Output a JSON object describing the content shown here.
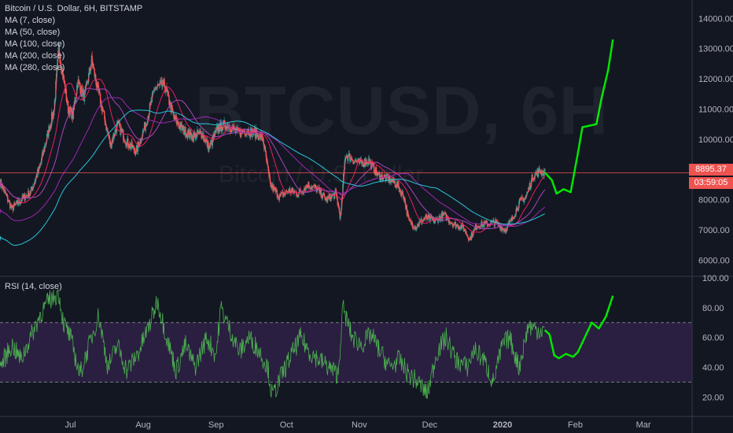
{
  "header": {
    "title": "Bitcoin / U.S. Dollar, 6H, BITSTAMP",
    "ma_labels": [
      "MA (7, close)",
      "MA (50, close)",
      "MA (100, close)",
      "MA (200, close)",
      "MA (280, close)"
    ]
  },
  "watermark": {
    "symbol": "BTCUSD, 6H",
    "name": "Bitcoin / U.S. Dollar"
  },
  "price_tag": {
    "price": "8895.37",
    "countdown": "03:59:05"
  },
  "colors": {
    "background": "#131722",
    "up": "#26a69a",
    "down": "#ef5350",
    "rsi_line": "#4caf50",
    "projection": "#00e600",
    "rsi_band": "#2a1f40"
  },
  "chart_data": [
    {
      "type": "line",
      "title": "Bitcoin / U.S. Dollar, 6H, BITSTAMP",
      "x_ticks": [
        "Jul",
        "Aug",
        "Sep",
        "Oct",
        "Nov",
        "Dec",
        "2020",
        "Feb",
        "Mar"
      ],
      "y_ticks": [
        "6000.00",
        "7000.00",
        "8000.00",
        "9000.00",
        "10000.00",
        "11000.00",
        "12000.00",
        "13000.00",
        "14000.00"
      ],
      "ylim": [
        5700,
        14400
      ],
      "grid": false,
      "legend": "top-left",
      "price": {
        "x": [
          "2019-06-01",
          "2019-06-06",
          "2019-06-10",
          "2019-06-14",
          "2019-06-18",
          "2019-06-22",
          "2019-06-24",
          "2019-06-26",
          "2019-06-28",
          "2019-06-30",
          "2019-07-02",
          "2019-07-04",
          "2019-07-07",
          "2019-07-10",
          "2019-07-13",
          "2019-07-16",
          "2019-07-18",
          "2019-07-21",
          "2019-07-25",
          "2019-07-29",
          "2019-08-02",
          "2019-08-06",
          "2019-08-10",
          "2019-08-14",
          "2019-08-18",
          "2019-08-22",
          "2019-08-26",
          "2019-08-29",
          "2019-09-02",
          "2019-09-06",
          "2019-09-10",
          "2019-09-14",
          "2019-09-18",
          "2019-09-21",
          "2019-09-24",
          "2019-09-28",
          "2019-10-02",
          "2019-10-06",
          "2019-10-10",
          "2019-10-14",
          "2019-10-18",
          "2019-10-22",
          "2019-10-24",
          "2019-10-26",
          "2019-10-28",
          "2019-11-01",
          "2019-11-05",
          "2019-11-09",
          "2019-11-13",
          "2019-11-17",
          "2019-11-20",
          "2019-11-22",
          "2019-11-25",
          "2019-11-29",
          "2019-12-03",
          "2019-12-07",
          "2019-12-11",
          "2019-12-15",
          "2019-12-18",
          "2019-12-21",
          "2019-12-25",
          "2019-12-29",
          "2020-01-02",
          "2020-01-05",
          "2020-01-08",
          "2020-01-11",
          "2020-01-14",
          "2020-01-17",
          "2020-01-19"
        ],
        "y": [
          8600,
          7700,
          8000,
          8250,
          9100,
          10400,
          11000,
          13000,
          12000,
          11000,
          10800,
          11900,
          11400,
          12600,
          11500,
          10500,
          9800,
          10500,
          9900,
          9600,
          10500,
          11700,
          11800,
          10700,
          10300,
          10100,
          10200,
          9700,
          10400,
          10500,
          10200,
          10300,
          10200,
          10000,
          8500,
          8100,
          8300,
          8200,
          8500,
          8350,
          8000,
          8200,
          7400,
          9500,
          9400,
          9200,
          9300,
          8800,
          8700,
          8500,
          8100,
          7300,
          7100,
          7400,
          7300,
          7500,
          7200,
          7100,
          6700,
          7150,
          7200,
          7250,
          7000,
          7350,
          7900,
          8100,
          8800,
          8950,
          8895
        ]
      },
      "moving_averages": [
        {
          "name": "MA (7, close)",
          "color": "#f7525f"
        },
        {
          "name": "MA (50, close)",
          "color": "#e91e63"
        },
        {
          "name": "MA (100, close)",
          "color": "#ab47bc"
        },
        {
          "name": "MA (200, close)",
          "color": "#9c27b0"
        },
        {
          "name": "MA (280, close)",
          "color": "#26c6da"
        }
      ],
      "projection": {
        "x": [
          "2020-01-19",
          "2020-01-22",
          "2020-01-24",
          "2020-01-27",
          "2020-01-30",
          "2020-02-02",
          "2020-02-04",
          "2020-02-07",
          "2020-02-10",
          "2020-02-12",
          "2020-02-15",
          "2020-02-17"
        ],
        "y": [
          8895,
          8650,
          8200,
          8350,
          8250,
          9500,
          10400,
          10450,
          10500,
          11300,
          12300,
          13300
        ]
      }
    },
    {
      "type": "line",
      "title": "RSI (14, close)",
      "y_ticks": [
        "20.00",
        "40.00",
        "60.00",
        "80.00",
        "100.00"
      ],
      "ylim": [
        8,
        100
      ],
      "bands": [
        30,
        70
      ],
      "grid": false,
      "rsi": {
        "x": [
          "2019-06-01",
          "2019-06-06",
          "2019-06-10",
          "2019-06-14",
          "2019-06-18",
          "2019-06-22",
          "2019-06-26",
          "2019-06-28",
          "2019-07-01",
          "2019-07-05",
          "2019-07-09",
          "2019-07-13",
          "2019-07-17",
          "2019-07-21",
          "2019-07-25",
          "2019-07-30",
          "2019-08-04",
          "2019-08-07",
          "2019-08-11",
          "2019-08-15",
          "2019-08-19",
          "2019-08-23",
          "2019-08-28",
          "2019-09-01",
          "2019-09-03",
          "2019-09-07",
          "2019-09-11",
          "2019-09-15",
          "2019-09-19",
          "2019-09-23",
          "2019-09-25",
          "2019-09-29",
          "2019-10-03",
          "2019-10-07",
          "2019-10-11",
          "2019-10-15",
          "2019-10-19",
          "2019-10-23",
          "2019-10-25",
          "2019-10-29",
          "2019-11-02",
          "2019-11-06",
          "2019-11-10",
          "2019-11-14",
          "2019-11-18",
          "2019-11-22",
          "2019-11-26",
          "2019-11-30",
          "2019-12-04",
          "2019-12-08",
          "2019-12-12",
          "2019-12-17",
          "2019-12-20",
          "2019-12-24",
          "2019-12-28",
          "2020-01-01",
          "2020-01-04",
          "2020-01-08",
          "2020-01-12",
          "2020-01-16",
          "2020-01-19"
        ],
        "y": [
          40,
          55,
          45,
          60,
          75,
          85,
          90,
          70,
          60,
          35,
          55,
          75,
          40,
          55,
          38,
          50,
          70,
          85,
          60,
          38,
          55,
          40,
          60,
          48,
          80,
          65,
          50,
          60,
          52,
          40,
          20,
          35,
          48,
          60,
          50,
          45,
          40,
          35,
          80,
          60,
          55,
          62,
          50,
          40,
          45,
          35,
          30,
          22,
          50,
          60,
          45,
          40,
          52,
          45,
          30,
          55,
          60,
          40,
          68,
          65,
          65
        ]
      },
      "projection": {
        "x": [
          "2020-01-19",
          "2020-01-21",
          "2020-01-23",
          "2020-01-25",
          "2020-01-28",
          "2020-01-31",
          "2020-02-02",
          "2020-02-05",
          "2020-02-08",
          "2020-02-11",
          "2020-02-14",
          "2020-02-17"
        ],
        "y": [
          65,
          62,
          48,
          46,
          49,
          47,
          50,
          60,
          70,
          66,
          74,
          88
        ]
      }
    }
  ]
}
